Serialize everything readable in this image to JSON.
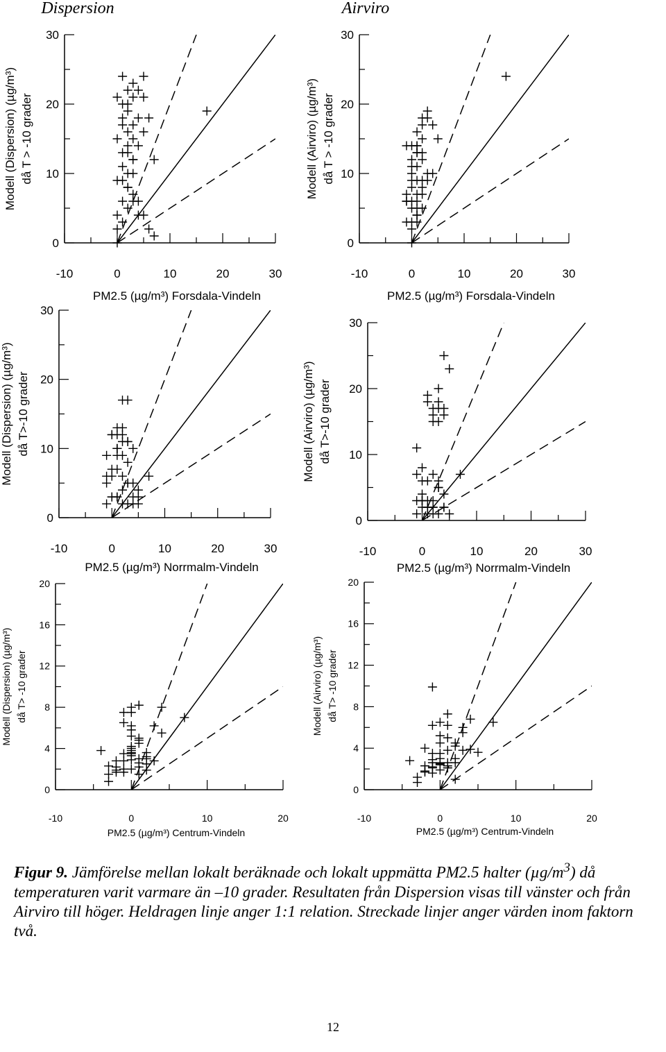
{
  "headers": {
    "left": "Dispersion",
    "right": "Airviro"
  },
  "chart_data": [
    {
      "type": "scatter",
      "name": "disp-forsdala",
      "ylabel": [
        "Modell (Dispersion) (µg/m³)",
        "då T > -10 grader"
      ],
      "xlabel": "PM2.5 (µg/m³) Forsdala-Vindeln",
      "xlim": [
        -10,
        30
      ],
      "ylim": [
        0,
        30
      ],
      "xticks": [
        -10,
        0,
        10,
        20,
        30
      ],
      "yticks": [
        0,
        10,
        20,
        30
      ],
      "x": [
        0,
        0,
        0,
        1,
        2,
        2,
        3,
        4,
        5,
        1,
        2,
        3,
        0,
        1,
        2,
        3,
        1,
        2,
        3,
        4,
        5,
        6,
        7,
        1,
        2,
        3,
        0,
        1,
        2,
        3,
        1,
        2,
        3,
        4,
        5,
        6,
        7,
        1,
        2,
        3,
        4,
        5,
        0,
        1,
        2,
        3,
        4,
        17
      ],
      "y": [
        0,
        2,
        4,
        6,
        8,
        10,
        12,
        14,
        16,
        3,
        5,
        7,
        9,
        11,
        13,
        15,
        17,
        19,
        21,
        22,
        24,
        18,
        12,
        24,
        20,
        17,
        21,
        18,
        14,
        12,
        13,
        16,
        10,
        6,
        4,
        2,
        1,
        20,
        22,
        23,
        18,
        21,
        15,
        9,
        8,
        6,
        4,
        19
      ]
    },
    {
      "type": "scatter",
      "name": "airviro-forsdala",
      "ylabel": [
        "Modell (Airviro) (µg/m³)",
        "då T > -10 grader"
      ],
      "xlabel": "PM2.5 (µg/m³) Forsdala-Vindeln",
      "xlim": [
        -10,
        30
      ],
      "ylim": [
        0,
        30
      ],
      "xticks": [
        -10,
        0,
        10,
        20,
        30
      ],
      "yticks": [
        0,
        10,
        20,
        30
      ],
      "x": [
        0,
        -1,
        -1,
        0,
        0,
        1,
        1,
        2,
        2,
        3,
        0,
        1,
        2,
        1,
        2,
        3,
        0,
        1,
        1,
        2,
        3,
        4,
        5,
        -1,
        -1,
        0,
        1,
        2,
        -1,
        0,
        1,
        2,
        0,
        1,
        2,
        3,
        4,
        0,
        1,
        1,
        0,
        1,
        2,
        0,
        1,
        18
      ],
      "y": [
        0,
        3,
        6,
        9,
        11,
        13,
        14,
        15,
        17,
        18,
        2,
        4,
        5,
        7,
        9,
        10,
        12,
        14,
        16,
        18,
        19,
        17,
        15,
        7,
        6,
        10,
        11,
        13,
        14,
        14,
        13,
        12,
        5,
        6,
        8,
        9,
        10,
        3,
        4,
        3,
        8,
        9,
        7,
        6,
        5,
        24
      ]
    },
    {
      "type": "scatter",
      "name": "disp-norrmalm",
      "ylabel": [
        "Modell (Dispersion) (µg/m³)",
        "då T>-10 grader"
      ],
      "xlabel": "PM2.5  (µg/m³) Norrmalm-Vindeln",
      "xlim": [
        -10,
        30
      ],
      "ylim": [
        0,
        30
      ],
      "xticks": [
        -10,
        0,
        10,
        20,
        30
      ],
      "yticks": [
        0,
        10,
        20,
        30
      ],
      "x": [
        -1,
        -1,
        -1,
        0,
        0,
        1,
        1,
        1,
        2,
        2,
        3,
        3,
        4,
        0,
        1,
        1,
        2,
        2,
        3,
        -1,
        0,
        1,
        2,
        3,
        4,
        5,
        1,
        2,
        3,
        0,
        1,
        2,
        3,
        0,
        1,
        2,
        3,
        4,
        5,
        7,
        4,
        5
      ],
      "y": [
        9,
        6,
        5,
        3,
        6,
        9,
        10,
        13,
        13,
        12,
        11,
        11,
        10,
        12,
        12,
        10,
        11,
        17,
        17,
        2,
        3,
        3,
        4,
        5,
        5,
        4,
        7,
        6,
        5,
        12,
        10,
        9,
        8,
        7,
        3,
        2,
        2,
        2,
        3,
        6,
        3,
        2
      ]
    },
    {
      "type": "scatter",
      "name": "airviro-norrmalm",
      "ylabel": [
        "Modell (Airviro) (µg/m³)",
        "då T>-10 grader"
      ],
      "xlabel": "PM2.5  (µg/m³) Norrmalm-Vindeln",
      "xlim": [
        -10,
        30
      ],
      "ylim": [
        0,
        30
      ],
      "xticks": [
        -10,
        0,
        10,
        20,
        30
      ],
      "yticks": [
        0,
        10,
        20,
        30
      ],
      "x": [
        -1,
        -1,
        0,
        0,
        1,
        1,
        2,
        2,
        3,
        3,
        4,
        4,
        5,
        1,
        2,
        3,
        -1,
        0,
        1,
        2,
        3,
        4,
        5,
        0,
        1,
        2,
        3,
        4,
        0,
        1,
        2,
        3,
        2,
        3,
        3,
        4,
        4,
        7,
        1,
        2,
        -1,
        0
      ],
      "y": [
        11,
        7,
        6,
        4,
        3,
        2,
        2,
        3,
        5,
        5,
        2,
        2,
        1,
        18,
        17,
        17,
        3,
        2,
        1,
        2,
        15,
        25,
        23,
        8,
        6,
        7,
        6,
        4,
        3,
        2,
        1,
        1,
        15,
        18,
        20,
        17,
        16,
        7,
        19,
        16,
        1,
        3
      ]
    },
    {
      "type": "scatter",
      "name": "disp-centrum",
      "ylabel": [
        "Modell (Dispersion) (µg/m³)",
        "då T> -10 grader"
      ],
      "xlabel": "PM2.5  (µg/m³) Centrum-Vindeln",
      "xlim": [
        -10,
        20
      ],
      "ylim": [
        0,
        20
      ],
      "xticks": [
        -10,
        0,
        10,
        20
      ],
      "yticks": [
        0,
        4,
        8,
        12,
        16,
        20
      ],
      "x": [
        -4,
        -3,
        -3,
        -3,
        -2,
        -2,
        -2,
        -1,
        -1,
        -1,
        0,
        0,
        0,
        1,
        1,
        1,
        2,
        2,
        3,
        3,
        4,
        4,
        -1,
        -1,
        0,
        0,
        0,
        1,
        1,
        0,
        0,
        1,
        2,
        2,
        0,
        1,
        1,
        0,
        0,
        7,
        -2,
        -1,
        0,
        1,
        2,
        0
      ],
      "y": [
        3.8,
        2.3,
        1.5,
        0.8,
        2.8,
        2.2,
        1.7,
        3.5,
        2.8,
        2.0,
        3.8,
        4.2,
        3.5,
        4.8,
        5.0,
        3.0,
        2.5,
        3.2,
        6.2,
        2.8,
        8.0,
        5.5,
        7.5,
        6.5,
        7.5,
        6.2,
        5.2,
        8.2,
        8.2,
        5.8,
        4.0,
        2.6,
        1.9,
        3.6,
        2.0,
        1.5,
        4.5,
        2.9,
        3.3,
        7.0,
        1.9,
        1.7,
        3.6,
        2.2,
        3.0,
        8.0
      ]
    },
    {
      "type": "scatter",
      "name": "airviro-centrum",
      "ylabel": [
        "Modell (Airviro) (µg/m³)",
        "då T> -10 grader"
      ],
      "xlabel": "PM2.5  (µg/m³) Centrum-Vindeln",
      "xlim": [
        -10,
        20
      ],
      "ylim": [
        0,
        20
      ],
      "xticks": [
        -10,
        0,
        10,
        20
      ],
      "yticks": [
        0,
        4,
        8,
        12,
        16,
        20
      ],
      "x": [
        -3,
        -3,
        -2,
        -2,
        -2,
        -1,
        -1,
        -1,
        -1,
        0,
        0,
        0,
        1,
        1,
        1,
        2,
        2,
        2,
        3,
        3,
        4,
        4,
        -1,
        0,
        0,
        1,
        1,
        1,
        2,
        0,
        -1,
        0,
        1,
        2,
        3,
        5,
        7,
        -1,
        -4,
        -2,
        0,
        1,
        -1,
        0
      ],
      "y": [
        1.2,
        0.7,
        2.3,
        1.7,
        4.0,
        2.2,
        1.6,
        3.5,
        2.1,
        2.4,
        1.9,
        3.5,
        2.6,
        2.3,
        3.8,
        3.0,
        4.2,
        4.5,
        3.8,
        5.5,
        6.8,
        3.9,
        6.2,
        5.2,
        6.5,
        6.2,
        7.3,
        2.1,
        1.0,
        2.5,
        2.9,
        4.5,
        5.0,
        2.6,
        6.0,
        3.6,
        6.5,
        9.9,
        2.8,
        1.8,
        3.0,
        2.1,
        2.6,
        2.6
      ]
    }
  ],
  "caption": {
    "label": "Figur 9.",
    "text_main": " Jämförelse mellan lokalt beräknade och lokalt uppmätta PM2.5 halter (µg/m",
    "text_sup": "3",
    "text_rest": ") då temperaturen varit varmare än –10 grader. Resultaten från Dispersion visas till vänster och från Airviro till höger. Heldragen linje anger 1:1 relation. Streckade linjer anger värden inom faktorn två."
  },
  "page_number": "12"
}
